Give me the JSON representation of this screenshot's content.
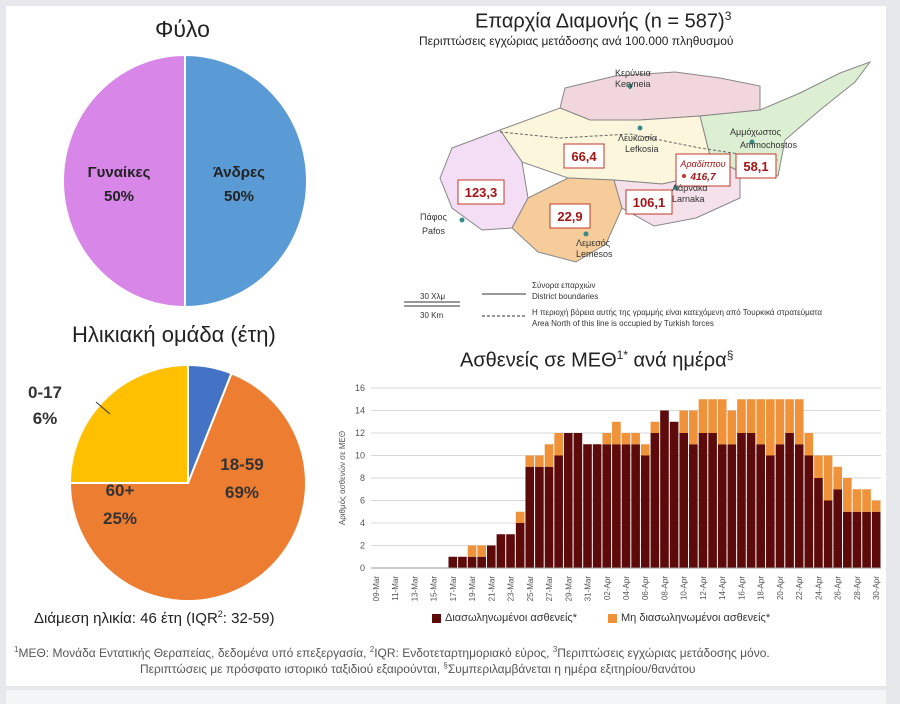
{
  "sex_chart": {
    "title": "Φύλο",
    "slices": [
      {
        "label": "Άνδρες",
        "value": 50,
        "pct_label": "50%",
        "color": "#5b9bd5"
      },
      {
        "label": "Γυναίκες",
        "value": 50,
        "pct_label": "50%",
        "color": "#d887e8"
      }
    ]
  },
  "age_chart": {
    "title": "Ηλικιακή ομάδα (έτη)",
    "slices": [
      {
        "label": "18-59",
        "value": 69,
        "pct_label": "69%",
        "color": "#ed7d31"
      },
      {
        "label": "60+",
        "value": 25,
        "pct_label": "25%",
        "color": "#ffc000"
      },
      {
        "label": "0-17",
        "value": 6,
        "pct_label": "6%",
        "color": "#4472c4"
      }
    ],
    "median": "Διάμεση ηλικία: 46 έτη (IQR",
    "median_sup": "2",
    "median_end": ": 32-59)"
  },
  "map": {
    "title": "Επαρχία Διαμονής (n = 587)",
    "title_sup": "3",
    "subtitle": "Περιπτώσεις εγχώριας μετάδοσης ανά 100.000 πληθυσμού",
    "districts": [
      {
        "name": "Κερύνεια",
        "latin": "Keryneia"
      },
      {
        "name": "Λευκωσία",
        "latin": "Lefkosia",
        "value": "66,4"
      },
      {
        "name": "Αμμόχωστος",
        "latin": "Ammochostos",
        "value": "58,1"
      },
      {
        "name": "Αραδίππου",
        "value": "416,7"
      },
      {
        "name": "Λάρνακα",
        "latin": "Larnaka",
        "value": "106,1"
      },
      {
        "name": "Πάφος",
        "latin": "Pafos",
        "value": "123,3"
      },
      {
        "name": "Λεμεσός",
        "latin": "Lemesos",
        "value": "22,9"
      }
    ],
    "scale_gr": "30 Χλμ",
    "scale_en": "30 Km",
    "legend_boundary_gr": "Σύνορα επαρχιών",
    "legend_boundary_en": "District boundaries",
    "legend_occupied_gr": "Η περιοχή βόρεια αυτής της γραμμής είναι κατεχόμενη από Τουρκικά στρατεύματα",
    "legend_occupied_en": "Area North of this line is occupied by Turkish forces"
  },
  "chart_data": {
    "type": "bar",
    "stacked": true,
    "title": "Ασθενείς σε ΜΕΘ",
    "title_sup": "1*",
    "title_end": " ανά ημέρα",
    "title_sup2": "§",
    "ylabel": "Αριθμός ασθενών σε ΜΕΘ",
    "ylim": [
      0,
      16
    ],
    "yticks": [
      0,
      2,
      4,
      6,
      8,
      10,
      12,
      14,
      16
    ],
    "grid": true,
    "legend_position": "bottom",
    "categories": [
      "09-Mar",
      "10-Mar",
      "11-Mar",
      "12-Mar",
      "13-Mar",
      "14-Mar",
      "15-Mar",
      "16-Mar",
      "17-Mar",
      "18-Mar",
      "19-Mar",
      "20-Mar",
      "21-Mar",
      "22-Mar",
      "23-Mar",
      "24-Mar",
      "25-Mar",
      "26-Mar",
      "27-Mar",
      "28-Mar",
      "29-Mar",
      "30-Mar",
      "31-Mar",
      "01-Apr",
      "02-Apr",
      "03-Apr",
      "04-Apr",
      "05-Apr",
      "06-Apr",
      "07-Apr",
      "08-Apr",
      "09-Apr",
      "10-Apr",
      "11-Apr",
      "12-Apr",
      "13-Apr",
      "14-Apr",
      "15-Apr",
      "16-Apr",
      "17-Apr",
      "18-Apr",
      "19-Apr",
      "20-Apr",
      "21-Apr",
      "22-Apr",
      "23-Apr",
      "24-Apr",
      "25-Apr",
      "26-Apr",
      "27-Apr",
      "28-Apr",
      "29-Apr",
      "30-Apr"
    ],
    "x_tick_labels": [
      "09-Mar",
      "11-Mar",
      "13-Mar",
      "15-Mar",
      "17-Mar",
      "19-Mar",
      "21-Mar",
      "23-Mar",
      "25-Mar",
      "27-Mar",
      "29-Mar",
      "31-Mar",
      "02-Apr",
      "04-Apr",
      "06-Apr",
      "08-Apr",
      "10-Apr",
      "12-Apr",
      "14-Apr",
      "16-Apr",
      "18-Apr",
      "20-Apr",
      "22-Apr",
      "24-Apr",
      "26-Apr",
      "28-Apr",
      "30-Apr"
    ],
    "series": [
      {
        "name": "Διασωληνωμένοι ασθενείς*",
        "color": "#5c0a0a",
        "values": [
          0,
          0,
          0,
          0,
          0,
          0,
          0,
          0,
          1,
          1,
          1,
          1,
          2,
          3,
          3,
          4,
          9,
          9,
          9,
          10,
          12,
          12,
          11,
          11,
          11,
          11,
          11,
          11,
          10,
          12,
          14,
          13,
          12,
          11,
          12,
          12,
          11,
          11,
          12,
          12,
          11,
          10,
          11,
          12,
          11,
          10,
          8,
          6,
          7,
          5,
          5,
          5,
          5
        ]
      },
      {
        "name": "Μη διασωληνωμένοι ασθενείς*",
        "color": "#f0923a",
        "values": [
          0,
          0,
          0,
          0,
          0,
          0,
          0,
          0,
          0,
          0,
          1,
          1,
          0,
          0,
          0,
          1,
          1,
          1,
          2,
          2,
          0,
          0,
          0,
          0,
          1,
          2,
          1,
          1,
          1,
          1,
          0,
          0,
          2,
          3,
          3,
          3,
          4,
          3,
          3,
          3,
          4,
          5,
          4,
          3,
          4,
          2,
          2,
          4,
          2,
          3,
          2,
          2,
          1
        ]
      }
    ]
  },
  "footnote": {
    "line1_parts": [
      "1",
      "ΜΕΘ: Μονάδα Εντατικής Θεραπείας, δεδομένα υπό επεξεργασία, ",
      "2",
      "IQR: Ενδοτεταρτημοριακό εύρος, ",
      "3",
      "Περιπτώσεις εγχώριας μετάδοσης μόνο."
    ],
    "line2_a": "Περιπτώσεις με πρόσφατο ιστορικό ταξιδιού εξαιρούνται, ",
    "line2_sup": "§",
    "line2_b": "Συμπεριλαμβάνεται η ημέρα εξιτηρίου/θανάτου"
  }
}
